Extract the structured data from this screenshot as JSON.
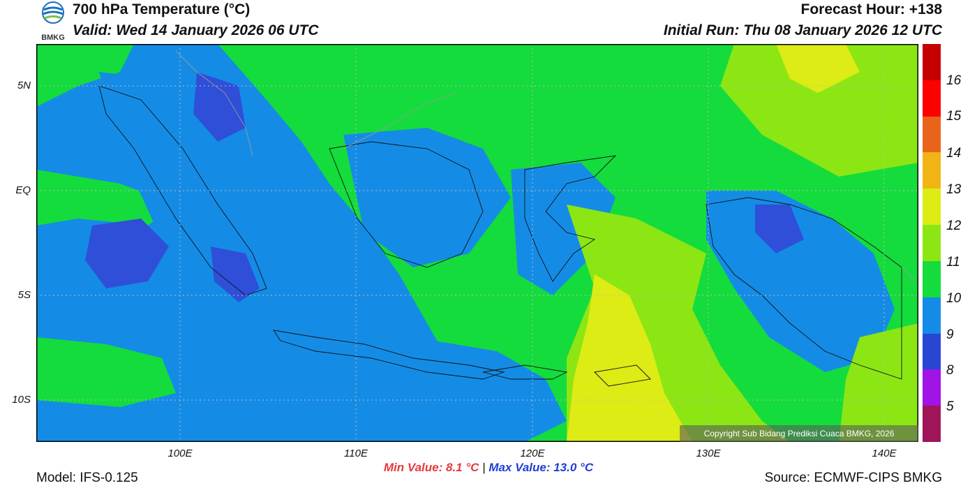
{
  "header": {
    "title": "700 hPa Temperature (°C)",
    "valid": "Valid: Wed 14 January 2026 06 UTC",
    "forecast_hour": "Forecast Hour: +138",
    "initial_run": "Initial Run: Thu 08 January 2026 12 UTC"
  },
  "logo": {
    "text": "BMKG"
  },
  "map": {
    "lat_labels": [
      "5N",
      "EQ",
      "5S",
      "10S"
    ],
    "lon_labels": [
      "100E",
      "110E",
      "120E",
      "130E",
      "140E"
    ],
    "copyright": "Copyright Sub Bidang Prediksi Cuaca BMKG, 2026"
  },
  "colorbar": {
    "labels": [
      "16",
      "15",
      "14",
      "13",
      "12",
      "11",
      "10",
      "9",
      "8",
      "5"
    ],
    "colors": [
      "#c40000",
      "#ff0000",
      "#e8641a",
      "#f0b414",
      "#dcec14",
      "#8ce614",
      "#14dc3c",
      "#148ce6",
      "#2846d2",
      "#a014e6",
      "#a0145a"
    ]
  },
  "stats": {
    "min": "Min Value: 8.1 °C",
    "separator": "|",
    "max": "Max Value: 13.0 °C"
  },
  "footer": {
    "model": "Model: IFS-0.125",
    "source": "Source: ECMWF-CIPS BMKG"
  },
  "colors": {
    "cold_patch": "#2f4fd8",
    "blue": "#148ce6",
    "green": "#14dc3c",
    "light_green": "#8ce614",
    "yellow": "#dcec14"
  }
}
